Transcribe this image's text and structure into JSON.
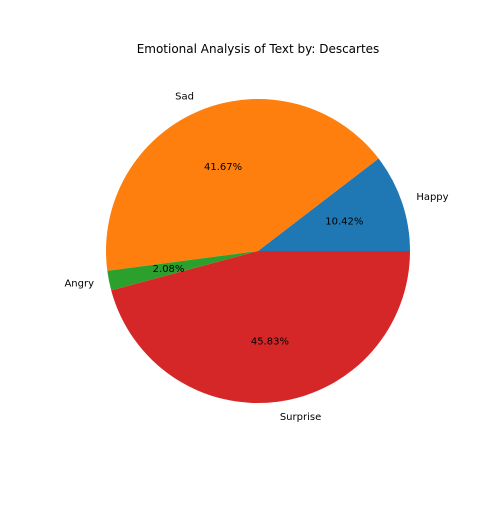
{
  "chart_data": {
    "type": "pie",
    "title": "Emotional Analysis of Text by: Descartes",
    "slices": [
      {
        "label": "Happy",
        "percent": 10.42,
        "percent_label": "10.42%",
        "color": "#1f77b4"
      },
      {
        "label": "Sad",
        "percent": 41.67,
        "percent_label": "41.67%",
        "color": "#ff7f0e"
      },
      {
        "label": "Angry",
        "percent": 2.08,
        "percent_label": "2.08%",
        "color": "#2ca02c"
      },
      {
        "label": "Surprise",
        "percent": 45.83,
        "percent_label": "45.83%",
        "color": "#d62728"
      }
    ],
    "start_angle_deg": 0,
    "direction": "counterclockwise"
  }
}
